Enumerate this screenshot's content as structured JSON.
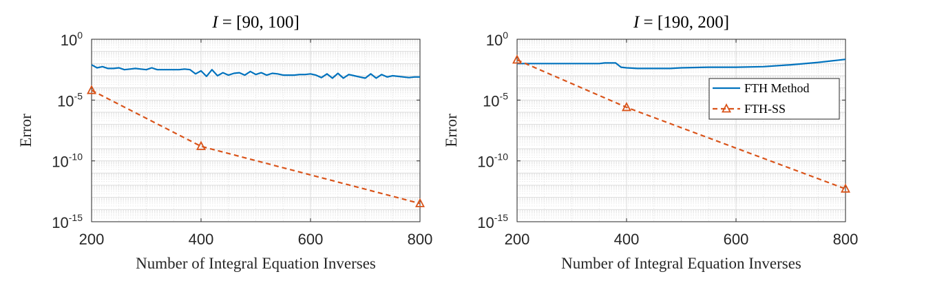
{
  "colors": {
    "fth": "#0072BD",
    "ss": "#D95319",
    "grid": "#e3e3e3",
    "axis": "#262626"
  },
  "legend": {
    "fth_label": "FTH Method",
    "ss_label": "FTH-SS"
  },
  "chart_data": [
    {
      "type": "line",
      "title_var": "I",
      "title_rest": " = [90, 100]",
      "xlabel": "Number of Integral Equation Inverses",
      "ylabel": "Error",
      "xlim": [
        200,
        800
      ],
      "ylim_exp": [
        -15,
        0
      ],
      "yscale": "log",
      "x_ticks": [
        "200",
        "400",
        "600",
        "800"
      ],
      "y_ticks": [
        {
          "base": "10",
          "exp": "0"
        },
        {
          "base": "10",
          "exp": "-5"
        },
        {
          "base": "10",
          "exp": "-10"
        },
        {
          "base": "10",
          "exp": "-15"
        }
      ],
      "show_legend": false,
      "series": [
        {
          "name": "FTH Method",
          "x": [
            200,
            210,
            220,
            230,
            240,
            250,
            260,
            270,
            280,
            290,
            300,
            310,
            320,
            330,
            340,
            350,
            360,
            370,
            380,
            390,
            400,
            410,
            420,
            430,
            440,
            450,
            460,
            470,
            480,
            490,
            500,
            510,
            520,
            530,
            540,
            550,
            560,
            570,
            580,
            590,
            600,
            610,
            620,
            630,
            640,
            650,
            660,
            670,
            680,
            690,
            700,
            710,
            720,
            730,
            740,
            750,
            760,
            770,
            780,
            790,
            800
          ],
          "y_exp": [
            -2.1,
            -2.35,
            -2.25,
            -2.4,
            -2.4,
            -2.35,
            -2.5,
            -2.45,
            -2.4,
            -2.45,
            -2.5,
            -2.35,
            -2.5,
            -2.5,
            -2.5,
            -2.5,
            -2.5,
            -2.45,
            -2.5,
            -2.85,
            -2.6,
            -3.05,
            -2.5,
            -3.0,
            -2.75,
            -2.95,
            -2.8,
            -2.75,
            -2.95,
            -2.65,
            -2.9,
            -2.75,
            -2.95,
            -2.8,
            -2.85,
            -2.95,
            -2.95,
            -2.95,
            -2.9,
            -2.9,
            -2.85,
            -2.95,
            -3.15,
            -2.85,
            -3.2,
            -2.8,
            -3.2,
            -2.9,
            -3.0,
            -3.1,
            -3.2,
            -2.85,
            -3.2,
            -2.9,
            -3.1,
            -3.0,
            -3.05,
            -3.1,
            -3.15,
            -3.1,
            -3.1
          ]
        },
        {
          "name": "FTH-SS",
          "x": [
            200,
            400,
            800
          ],
          "y_exp": [
            -4.2,
            -8.8,
            -13.5
          ]
        }
      ]
    },
    {
      "type": "line",
      "title_var": "I",
      "title_rest": " = [190, 200]",
      "xlabel": "Number of Integral Equation Inverses",
      "ylabel": "Error",
      "xlim": [
        200,
        800
      ],
      "ylim_exp": [
        -15,
        0
      ],
      "yscale": "log",
      "x_ticks": [
        "200",
        "400",
        "600",
        "800"
      ],
      "y_ticks": [
        {
          "base": "10",
          "exp": "0"
        },
        {
          "base": "10",
          "exp": "-5"
        },
        {
          "base": "10",
          "exp": "-10"
        },
        {
          "base": "10",
          "exp": "-15"
        }
      ],
      "show_legend": true,
      "legend_loc": "right",
      "series": [
        {
          "name": "FTH Method",
          "x": [
            200,
            250,
            300,
            350,
            360,
            370,
            380,
            390,
            400,
            420,
            440,
            460,
            480,
            500,
            550,
            600,
            650,
            700,
            750,
            800
          ],
          "y_exp": [
            -2.0,
            -2.0,
            -2.0,
            -2.0,
            -1.95,
            -1.95,
            -1.95,
            -2.3,
            -2.35,
            -2.4,
            -2.4,
            -2.4,
            -2.4,
            -2.35,
            -2.3,
            -2.3,
            -2.25,
            -2.1,
            -1.9,
            -1.65
          ]
        },
        {
          "name": "FTH-SS",
          "x": [
            200,
            400,
            800
          ],
          "y_exp": [
            -1.7,
            -5.6,
            -12.3
          ]
        }
      ]
    }
  ]
}
